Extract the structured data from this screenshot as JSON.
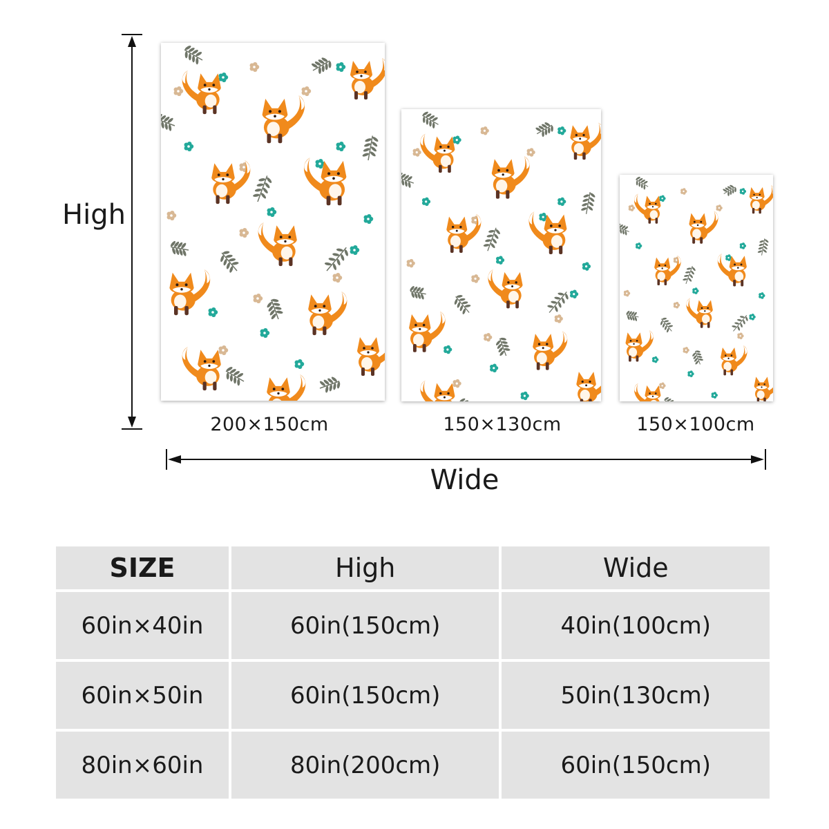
{
  "dimension_diagram": {
    "high_label": "High",
    "wide_label": "Wide",
    "blankets": [
      {
        "size_label": "200×150cm"
      },
      {
        "size_label": "150×130cm"
      },
      {
        "size_label": "150×100cm"
      }
    ]
  },
  "size_table": {
    "headers": {
      "size": "SIZE",
      "high": "High",
      "wide": "Wide"
    },
    "rows": [
      {
        "size": "60in×40in",
        "high": "60in(150cm)",
        "wide": "40in(100cm)"
      },
      {
        "size": "60in×50in",
        "high": "60in(150cm)",
        "wide": "50in(130cm)"
      },
      {
        "size": "80in×60in",
        "high": "80in(200cm)",
        "wide": "60in(150cm)"
      }
    ]
  },
  "colors": {
    "fox_orange": "#f08a1c",
    "fox_brown": "#5b3324",
    "teal_flower": "#22a99a",
    "tan_flower": "#d8b894",
    "leaf_gray": "#6f7568",
    "table_cell": "#e3e3e3"
  }
}
